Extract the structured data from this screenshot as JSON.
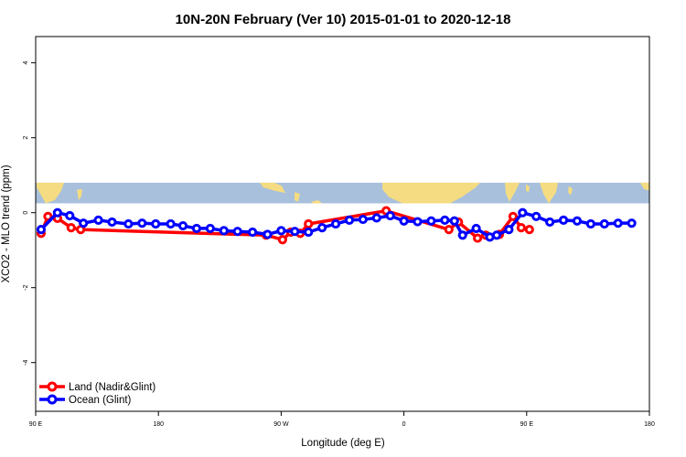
{
  "chart_data": {
    "type": "line",
    "title": "10N-20N February (Ver 10)   2015-01-01 to 2020-12-18",
    "xlabel": "Longitude (deg E)",
    "ylabel": "XCO2 - MLO trend (ppm)",
    "x_ticks": [
      {
        "value": 90,
        "label": "90 E"
      },
      {
        "value": 180,
        "label": "180"
      },
      {
        "value": 270,
        "label": "90 W"
      },
      {
        "value": 360,
        "label": "0"
      },
      {
        "value": 450,
        "label": "90 E"
      },
      {
        "value": 540,
        "label": "180"
      }
    ],
    "y_ticks": [
      -4,
      -2,
      0,
      2,
      4
    ],
    "xlim": [
      90,
      540
    ],
    "ylim": [
      -5.3,
      4.7
    ],
    "grid": false,
    "legend": "bottom-left",
    "map_band": {
      "ymin": 0.25,
      "ymax": 0.8,
      "ocean_color": "#a8c0dc",
      "land_color": "#f5dc82"
    },
    "series": [
      {
        "name": "Land (Nadir&Glint)",
        "color": "#ff0000",
        "x": [
          94,
          99,
          106,
          116,
          123,
          259,
          271,
          277,
          284,
          290,
          347,
          393,
          400,
          414,
          420,
          430,
          440,
          446,
          452
        ],
        "y": [
          -0.55,
          -0.1,
          -0.15,
          -0.4,
          -0.45,
          -0.6,
          -0.72,
          -0.52,
          -0.55,
          -0.3,
          0.05,
          -0.45,
          -0.25,
          -0.68,
          -0.6,
          -0.58,
          -0.1,
          -0.4,
          -0.45
        ]
      },
      {
        "name": "Ocean (Glint)",
        "color": "#0000ff",
        "x": [
          94,
          106,
          115,
          125,
          136,
          146,
          158,
          168,
          178,
          189,
          198,
          208,
          218,
          228,
          238,
          249,
          260,
          270,
          280,
          290,
          300,
          310,
          320,
          330,
          340,
          350,
          360,
          370,
          380,
          390,
          397,
          403,
          413,
          423,
          428,
          437,
          447,
          457,
          467,
          477,
          487,
          497,
          507,
          517,
          527
        ],
        "y": [
          -0.45,
          0.0,
          -0.08,
          -0.28,
          -0.2,
          -0.25,
          -0.3,
          -0.28,
          -0.3,
          -0.3,
          -0.35,
          -0.42,
          -0.42,
          -0.48,
          -0.5,
          -0.52,
          -0.58,
          -0.48,
          -0.5,
          -0.52,
          -0.4,
          -0.3,
          -0.2,
          -0.18,
          -0.14,
          -0.08,
          -0.22,
          -0.24,
          -0.22,
          -0.2,
          -0.22,
          -0.6,
          -0.42,
          -0.65,
          -0.6,
          -0.45,
          0.0,
          -0.1,
          -0.25,
          -0.2,
          -0.22,
          -0.3,
          -0.3,
          -0.28,
          -0.28
        ]
      }
    ]
  }
}
